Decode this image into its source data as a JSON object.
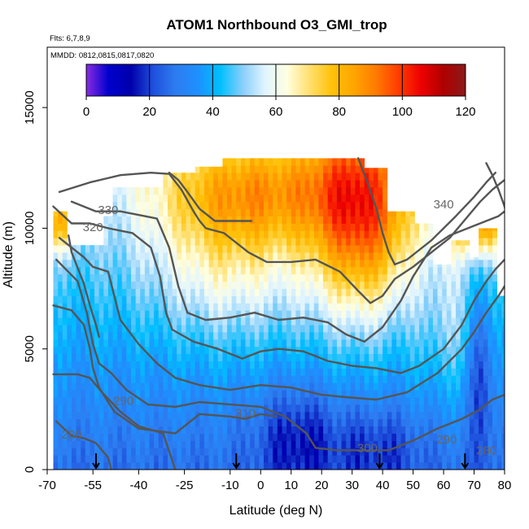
{
  "chart_data": {
    "type": "heatmap",
    "title": "ATOM1 Northbound O3_GMI_trop",
    "subtitle_flights": "Flts: 6,7,8,9",
    "subtitle_dates": "MMDD: 0812,0815,0817,0820",
    "xlabel": "Latitude (deg N)",
    "ylabel": "Altitude (m)",
    "xlim": [
      -70,
      80
    ],
    "ylim": [
      0,
      17500
    ],
    "x_ticks": [
      -70,
      -55,
      -40,
      -25,
      -10,
      0,
      10,
      20,
      30,
      40,
      50,
      60,
      70,
      80
    ],
    "x_tick_labels": [
      "-70",
      "-55",
      "-40",
      "-25",
      "-10",
      "0",
      "10",
      "20",
      "30",
      "40",
      "50",
      "60",
      "70",
      "80"
    ],
    "y_ticks": [
      0,
      5000,
      10000,
      15000
    ],
    "y_tick_labels": [
      "0",
      "5000",
      "10000",
      "15000"
    ],
    "colorbar": {
      "min": 0,
      "max": 120,
      "ticks": [
        "0",
        "20",
        "40",
        "60",
        "80",
        "100",
        "120"
      ],
      "colors": [
        "#8a2be2",
        "#0000cd",
        "#0000aa",
        "#1e50dc",
        "#2d7cf0",
        "#1e90ff",
        "#00bfff",
        "#87cefa",
        "#e0f4ff",
        "#ffffe0",
        "#ffe070",
        "#ffc20a",
        "#ffa500",
        "#ff7a00",
        "#ff3c00",
        "#ee0000",
        "#b00000",
        "#8b1a1a"
      ]
    },
    "data_domain": {
      "lat_range": [
        -68,
        80
      ],
      "alt_range": [
        0,
        12900
      ]
    },
    "contour_labels": [
      {
        "text": "330",
        "lat": -50,
        "alt": 10750
      },
      {
        "text": "320",
        "lat": -55,
        "alt": 10050
      },
      {
        "text": "340",
        "lat": 60,
        "alt": 11000
      },
      {
        "text": "310",
        "lat": -5,
        "alt": 2350
      },
      {
        "text": "300",
        "lat": 35,
        "alt": 900
      },
      {
        "text": "290",
        "lat": -45,
        "alt": 2850
      },
      {
        "text": "280",
        "lat": -62,
        "alt": 1450
      },
      {
        "text": "290",
        "lat": 61,
        "alt": 1250
      },
      {
        "text": "280",
        "lat": 74,
        "alt": 800
      }
    ],
    "flight_markers_lat": [
      -54,
      -8,
      39,
      67
    ]
  }
}
